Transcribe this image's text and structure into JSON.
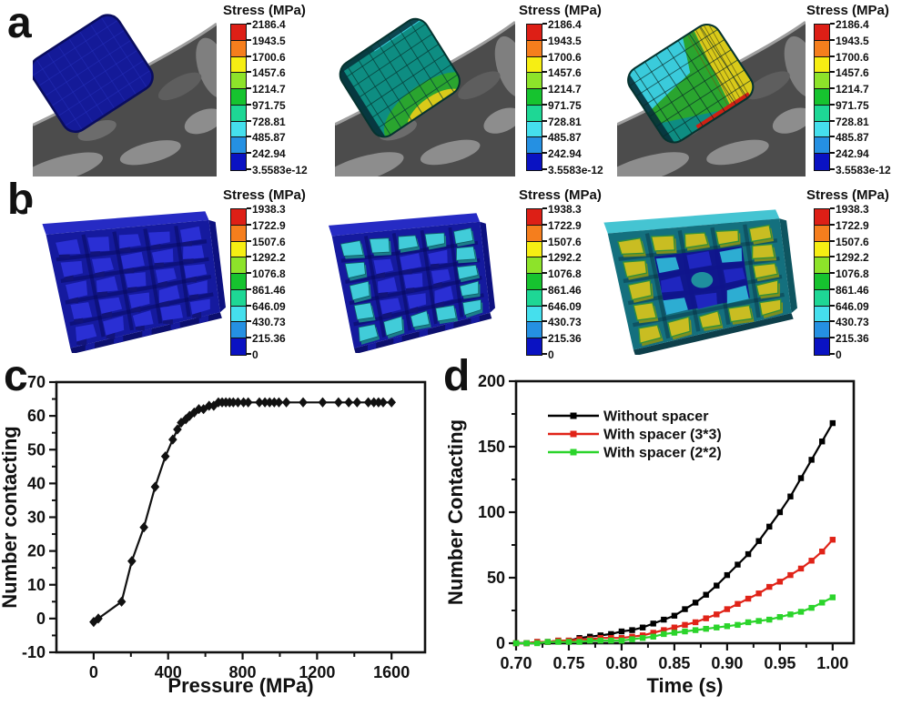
{
  "figure": {
    "background": "#ffffff",
    "panel_labels": {
      "a": "a",
      "b": "b",
      "c": "c",
      "d": "d"
    }
  },
  "colorbar_palette": [
    "#dd1f16",
    "#f57e1d",
    "#f6ee13",
    "#8de32a",
    "#16c32f",
    "#1ed795",
    "#45dfed",
    "#2590e2",
    "#0a12c2"
  ],
  "stress_legends": {
    "a": {
      "title": "Stress (MPa)",
      "labels": [
        "2186.4",
        "1943.5",
        "1700.6",
        "1457.6",
        "1214.7",
        "971.75",
        "728.81",
        "485.87",
        "242.94",
        "3.5583e-12"
      ]
    },
    "b": {
      "title": "Stress (MPa)",
      "labels": [
        "1938.3",
        "1722.9",
        "1507.6",
        "1292.2",
        "1076.8",
        "861.46",
        "646.09",
        "430.73",
        "215.36",
        "0"
      ]
    }
  },
  "sim_colors": {
    "rock_dark": "#4c4c4c",
    "rock_mid": "#6c6c6c",
    "rock_light": "#8d8d8d",
    "rock_edge": "#9e9e9e",
    "bump_navy": "#141a98",
    "bump_navy_line": "#2b36c4",
    "bump_navy_edge": "#0a0d5e",
    "bump_teal": "#0e8d82",
    "mesh_dark": "#083d38",
    "contact_green": "#2aa52f",
    "contact_yellow": "#d9ca1a",
    "contact_red": "#cf2114",
    "cyan_highlight": "#3acbdb",
    "dark_rim": "#072f38",
    "plate_blue": "#151a9e",
    "plate_strip_blue": "#262bc4",
    "plate_front_blue": "#0c0f6e",
    "plate_side_blue": "#0d1180",
    "bump_top_blue": "#2a2fd4",
    "bump_notch": "#12147a",
    "bump_cyan_top": "#41ccd9",
    "bump_cyan_side": "#1b7e8a",
    "plate_teal": "#14707e",
    "plate_strip_teal": "#45c4d2",
    "plate_front_teal": "#0d3f4a",
    "plate_side_teal": "#0e5560",
    "plate_center_navy": "#10128e",
    "bump_yellow_top": "#c9bd22",
    "bump_yellow_side": "#7d8f1e",
    "bump_yellow_edge": "#2f8f3a",
    "bump_inner_cyan": "#2fb5d6",
    "bump_inner_blue": "#2127c2",
    "center_bump_teal": "#1f8f9e"
  },
  "chart_data": [
    {
      "panel": "c",
      "type": "line",
      "xlabel": "Pressure (MPa)",
      "ylabel": "Number contacting",
      "xlim": [
        -200,
        1780
      ],
      "ylim": [
        -10,
        70
      ],
      "xticks": [
        0,
        400,
        800,
        1200,
        1600
      ],
      "xtick_labels": [
        "0",
        "400",
        "800",
        "1200",
        "1600"
      ],
      "xminor": [
        200,
        600,
        1000,
        1400
      ],
      "yticks": [
        -10,
        0,
        10,
        20,
        30,
        40,
        50,
        60,
        70
      ],
      "ytick_labels": [
        "-10",
        "0",
        "10",
        "20",
        "30",
        "40",
        "50",
        "60",
        "70"
      ],
      "yminor": [
        -5,
        5,
        15,
        25,
        35,
        45,
        55,
        65
      ],
      "grid": false,
      "marker": "diamond",
      "color": "#111111",
      "points": [
        [
          0,
          -1
        ],
        [
          25,
          0
        ],
        [
          150,
          5
        ],
        [
          205,
          17
        ],
        [
          270,
          27
        ],
        [
          330,
          39
        ],
        [
          385,
          48
        ],
        [
          425,
          53
        ],
        [
          450,
          56
        ],
        [
          470,
          58
        ],
        [
          495,
          59
        ],
        [
          515,
          60
        ],
        [
          540,
          61
        ],
        [
          565,
          62
        ],
        [
          590,
          62
        ],
        [
          620,
          63
        ],
        [
          645,
          63
        ],
        [
          670,
          64
        ],
        [
          690,
          64
        ],
        [
          710,
          64
        ],
        [
          730,
          64
        ],
        [
          750,
          64
        ],
        [
          775,
          64
        ],
        [
          805,
          64
        ],
        [
          830,
          64
        ],
        [
          890,
          64
        ],
        [
          920,
          64
        ],
        [
          945,
          64
        ],
        [
          970,
          64
        ],
        [
          995,
          64
        ],
        [
          1035,
          64
        ],
        [
          1125,
          64
        ],
        [
          1230,
          64
        ],
        [
          1315,
          64
        ],
        [
          1370,
          64
        ],
        [
          1415,
          64
        ],
        [
          1475,
          64
        ],
        [
          1505,
          64
        ],
        [
          1530,
          64
        ],
        [
          1555,
          64
        ],
        [
          1600,
          64
        ]
      ]
    },
    {
      "panel": "d",
      "type": "line",
      "xlabel": "Time (s)",
      "ylabel": "Number Contacting",
      "xlim": [
        0.7,
        1.02
      ],
      "ylim": [
        0,
        200
      ],
      "xticks": [
        0.7,
        0.75,
        0.8,
        0.85,
        0.9,
        0.95,
        1.0
      ],
      "xtick_labels": [
        "0.70",
        "0.75",
        "0.80",
        "0.85",
        "0.90",
        "0.95",
        "1.00"
      ],
      "xminor": [
        0.725,
        0.775,
        0.825,
        0.875,
        0.925,
        0.975
      ],
      "yticks": [
        0,
        50,
        100,
        150,
        200
      ],
      "ytick_labels": [
        "0",
        "50",
        "100",
        "150",
        "200"
      ],
      "yminor": [
        25,
        75,
        125,
        175
      ],
      "grid": false,
      "legend_position": "top-left-inside",
      "x": [
        0.7,
        0.71,
        0.72,
        0.73,
        0.74,
        0.75,
        0.76,
        0.77,
        0.78,
        0.79,
        0.8,
        0.81,
        0.82,
        0.83,
        0.84,
        0.85,
        0.86,
        0.87,
        0.88,
        0.89,
        0.9,
        0.91,
        0.92,
        0.93,
        0.94,
        0.95,
        0.96,
        0.97,
        0.98,
        0.99,
        1.0
      ],
      "series": [
        {
          "name": "Without spacer",
          "color": "#000000",
          "marker": "square",
          "values": [
            0,
            0,
            1,
            1,
            2,
            2,
            4,
            5,
            6,
            7,
            9,
            10,
            12,
            15,
            18,
            21,
            26,
            31,
            37,
            44,
            52,
            60,
            68,
            78,
            89,
            100,
            112,
            126,
            140,
            154,
            168
          ]
        },
        {
          "name": "With spacer (3*3)",
          "color": "#e02318",
          "marker": "square",
          "values": [
            0,
            0,
            1,
            1,
            2,
            2,
            3,
            3,
            4,
            4,
            4,
            5,
            6,
            8,
            10,
            12,
            14,
            16,
            19,
            22,
            26,
            30,
            34,
            38,
            43,
            47,
            52,
            57,
            63,
            70,
            79
          ]
        },
        {
          "name": "With spacer (2*2)",
          "color": "#2bd42b",
          "marker": "square",
          "values": [
            0,
            0,
            0,
            1,
            1,
            1,
            1,
            2,
            2,
            2,
            2,
            3,
            4,
            5,
            7,
            8,
            9,
            10,
            11,
            12,
            13,
            14,
            16,
            17,
            18,
            20,
            22,
            24,
            27,
            31,
            35
          ]
        }
      ]
    }
  ]
}
